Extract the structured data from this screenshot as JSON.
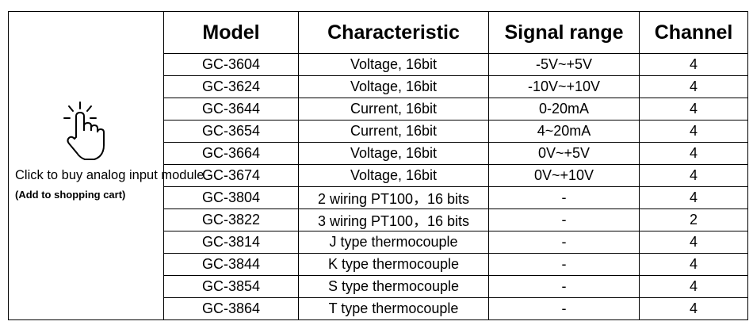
{
  "sidebar": {
    "text": "Click to buy analog input module",
    "note": "(Add to shopping cart)"
  },
  "table": {
    "columns": [
      "Model",
      "Characteristic",
      "Signal range",
      "Channel"
    ],
    "rows": [
      [
        "GC-3604",
        "Voltage, 16bit",
        "-5V~+5V",
        4
      ],
      [
        "GC-3624",
        "Voltage, 16bit",
        "-10V~+10V",
        4
      ],
      [
        "GC-3644",
        "Current, 16bit",
        "0-20mA",
        4
      ],
      [
        "GC-3654",
        "Current, 16bit",
        "4~20mA",
        4
      ],
      [
        "GC-3664",
        "Voltage, 16bit",
        "0V~+5V",
        4
      ],
      [
        "GC-3674",
        "Voltage, 16bit",
        "0V~+10V",
        4
      ],
      [
        "GC-3804",
        "2 wiring PT100，16 bits",
        "-",
        4
      ],
      [
        "GC-3822",
        "3 wiring PT100，16 bits",
        "-",
        2
      ],
      [
        "GC-3814",
        "J type thermocouple",
        "-",
        4
      ],
      [
        "GC-3844",
        "K type thermocouple",
        "-",
        4
      ],
      [
        "GC-3854",
        "S type thermocouple",
        "-",
        4
      ],
      [
        "GC-3864",
        "T type thermocouple",
        "-",
        4
      ]
    ]
  }
}
